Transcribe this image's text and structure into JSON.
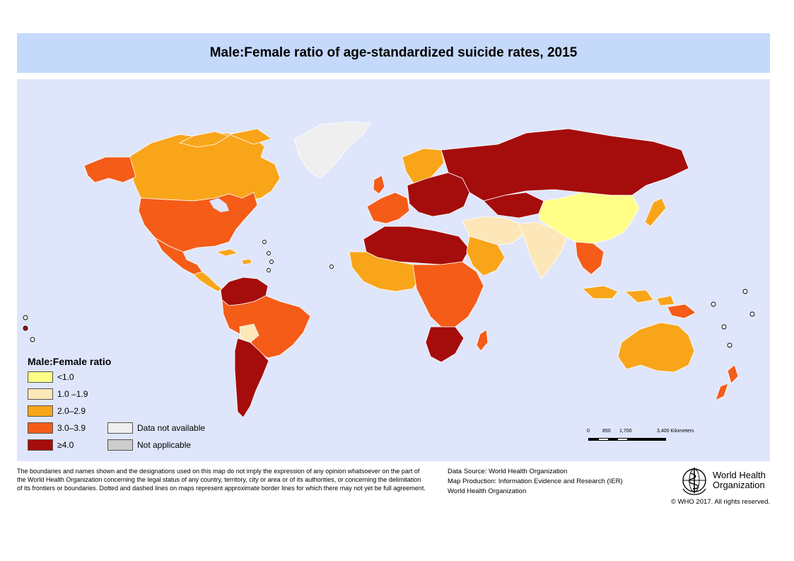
{
  "title": "Male:Female ratio of age-standardized suicide rates, 2015",
  "colors": {
    "lt1": "#ffff88",
    "r1_19": "#fde7b8",
    "r2_29": "#f9a51a",
    "r3_39": "#f45c18",
    "ge4": "#a50c0c",
    "na": "#efefef",
    "notapp": "#cccccc",
    "ocean": "#dfe6fb",
    "title_band": "#c5d9fb"
  },
  "legend": {
    "title": "Male:Female ratio",
    "items": [
      {
        "label": "<1.0",
        "color_key": "lt1"
      },
      {
        "label": "1.0 –1.9",
        "color_key": "r1_19"
      },
      {
        "label": "2.0–2.9",
        "color_key": "r2_29"
      },
      {
        "label": "3.0–3.9",
        "color_key": "r3_39"
      },
      {
        "label": "≥4.0",
        "color_key": "ge4"
      }
    ],
    "extra": [
      {
        "label": "Data not available",
        "color_key": "na"
      },
      {
        "label": "Not applicable",
        "color_key": "notapp"
      }
    ]
  },
  "scale": {
    "ticks": [
      "0",
      "850",
      "1,700",
      "3,400 Kilometers"
    ]
  },
  "disclaimer": "The boundaries and names shown and the designations used on this map do not imply the expression of any opinion whatsoever on the part of the World Health Organization concerning the legal status of any country, territory, city or area or of its authorities, or concerning the delimitation of its frontiers or boundaries. Dotted and dashed lines on maps represent approximate border lines for which there may not yet be full agreement.",
  "credits": {
    "source": "Data Source: World Health Organization",
    "production": "Map Production: Information Evidence and Research (IER)",
    "org": "World Health Organization"
  },
  "who": {
    "line1": "World Health",
    "line2": "Organization",
    "emblem_icon": "who-emblem-icon"
  },
  "copyright": "© WHO 2017. All rights reserved.",
  "regions": [
    {
      "name": "greenland",
      "class": "na"
    },
    {
      "name": "canada",
      "class": "r2_29"
    },
    {
      "name": "alaska",
      "class": "r3_39"
    },
    {
      "name": "usa",
      "class": "r3_39"
    },
    {
      "name": "mexico",
      "class": "r3_39"
    },
    {
      "name": "central-america",
      "class": "r2_29"
    },
    {
      "name": "south-america-north",
      "class": "ge4"
    },
    {
      "name": "brazil",
      "class": "r3_39"
    },
    {
      "name": "bolivia",
      "class": "r1_19"
    },
    {
      "name": "argentina-chile",
      "class": "ge4"
    },
    {
      "name": "europe",
      "class": "ge4"
    },
    {
      "name": "western-europe",
      "class": "r3_39"
    },
    {
      "name": "scandinavia",
      "class": "r2_29"
    },
    {
      "name": "russia",
      "class": "ge4"
    },
    {
      "name": "north-africa",
      "class": "ge4"
    },
    {
      "name": "west-africa",
      "class": "r2_29"
    },
    {
      "name": "central-africa",
      "class": "r3_39"
    },
    {
      "name": "southern-africa",
      "class": "ge4"
    },
    {
      "name": "middle-east",
      "class": "r1_19"
    },
    {
      "name": "arabia",
      "class": "r2_29"
    },
    {
      "name": "india",
      "class": "r1_19"
    },
    {
      "name": "china",
      "class": "lt1"
    },
    {
      "name": "southeast-asia",
      "class": "r3_39"
    },
    {
      "name": "indonesia",
      "class": "r2_29"
    },
    {
      "name": "australia",
      "class": "r2_29"
    },
    {
      "name": "new-zealand",
      "class": "r3_39"
    }
  ]
}
